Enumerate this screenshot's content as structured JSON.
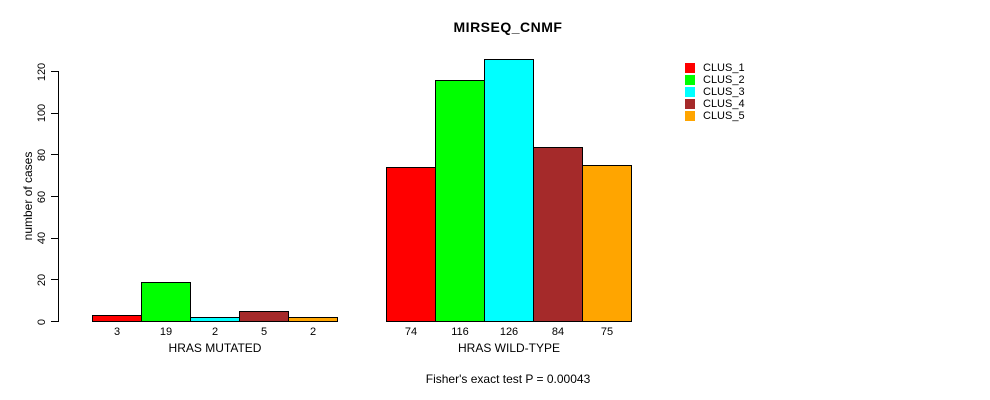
{
  "figure": {
    "title": "MIRSEQ_CNMF",
    "caption": "Fisher's exact test P = 0.00043"
  },
  "chart_data": {
    "type": "bar",
    "title": "MIRSEQ_CNMF",
    "xlabel": "",
    "ylabel": "number of cases",
    "categories": [
      "HRAS MUTATED",
      "HRAS WILD-TYPE"
    ],
    "series": [
      {
        "name": "CLUS_1",
        "color": "#FF0000",
        "values": [
          3,
          74
        ]
      },
      {
        "name": "CLUS_2",
        "color": "#00FF00",
        "values": [
          19,
          116
        ]
      },
      {
        "name": "CLUS_3",
        "color": "#00FFFF",
        "values": [
          2,
          126
        ]
      },
      {
        "name": "CLUS_4",
        "color": "#A52A2A",
        "values": [
          5,
          84
        ]
      },
      {
        "name": "CLUS_5",
        "color": "#FFA500",
        "values": [
          2,
          75
        ]
      }
    ],
    "y_ticks": [
      0,
      20,
      40,
      60,
      80,
      100,
      120
    ],
    "ylim": [
      0,
      126
    ],
    "bar_value_labels": true,
    "grid": false,
    "legend_position": "right",
    "annotation": "Fisher's exact test P = 0.00043"
  }
}
